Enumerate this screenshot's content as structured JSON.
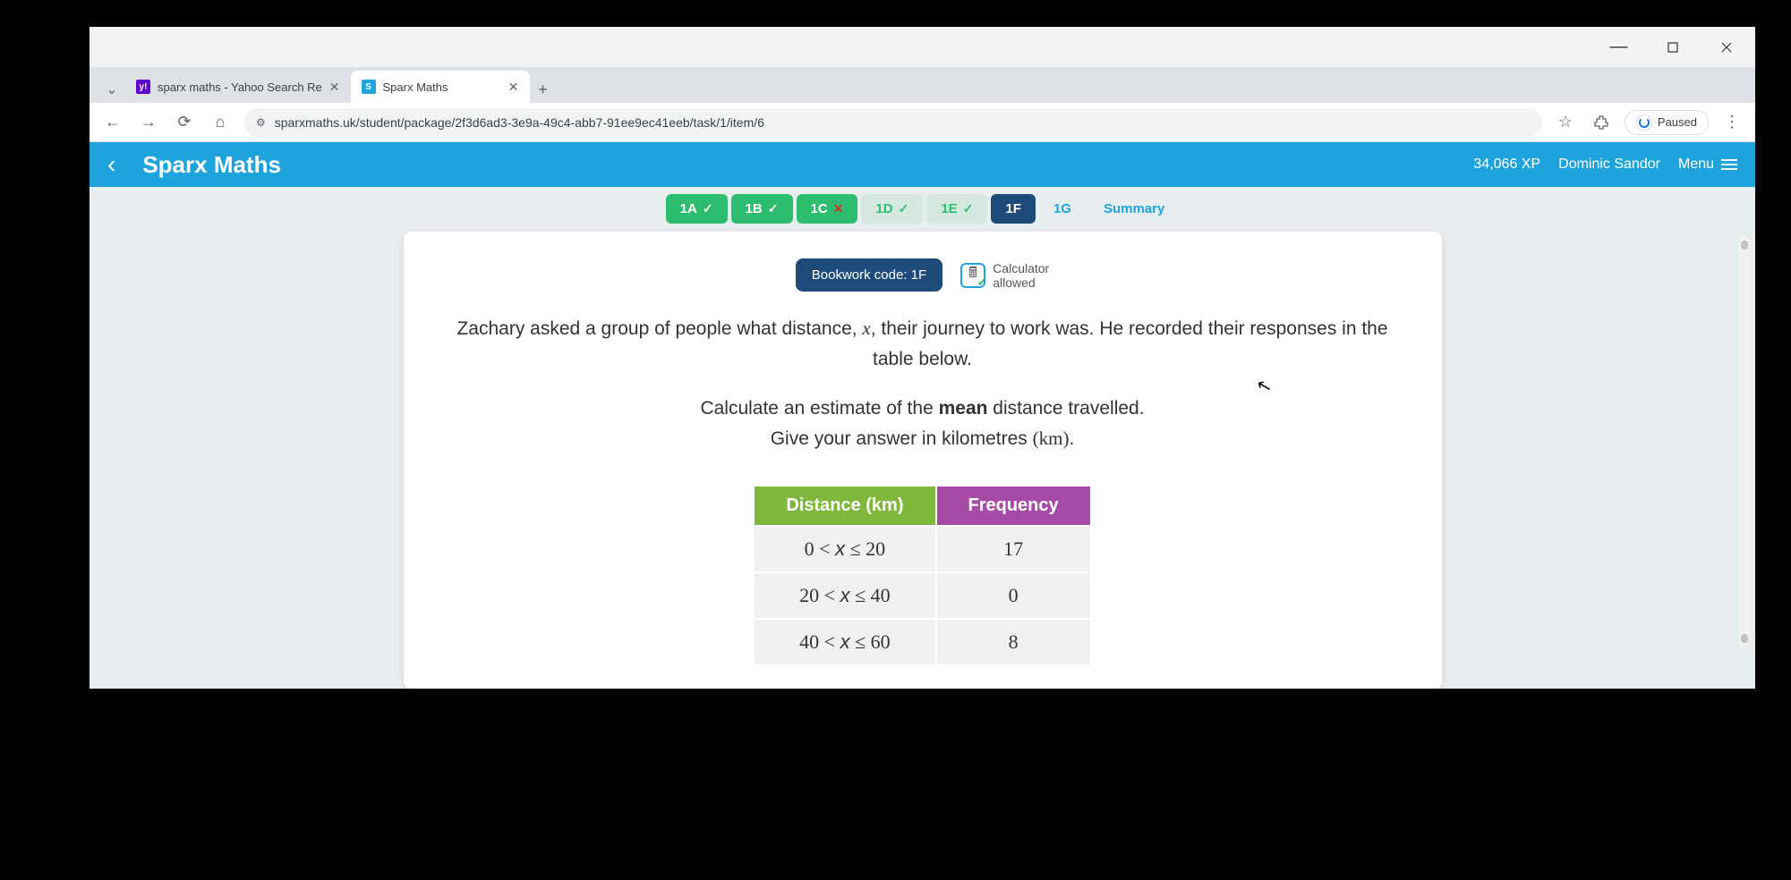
{
  "window": {
    "tabs": [
      {
        "title": "sparx maths - Yahoo Search Re",
        "favicon": "y!"
      },
      {
        "title": "Sparx Maths",
        "favicon": "S"
      }
    ],
    "url": "sparxmaths.uk/student/package/2f3d6ad3-3e9a-49c4-abb7-91ee9ec41eeb/task/1/item/6",
    "paused_label": "Paused"
  },
  "header": {
    "brand": "Sparx Maths",
    "xp": "34,066 XP",
    "user": "Dominic Sandor",
    "menu": "Menu"
  },
  "task_tabs": [
    {
      "label": "1A",
      "status": "✓",
      "state": "done"
    },
    {
      "label": "1B",
      "status": "✓",
      "state": "done"
    },
    {
      "label": "1C",
      "status": "✕",
      "state": "wrong"
    },
    {
      "label": "1D",
      "status": "✓",
      "state": "pending-light"
    },
    {
      "label": "1E",
      "status": "✓",
      "state": "pending-light"
    },
    {
      "label": "1F",
      "status": "",
      "state": "current"
    },
    {
      "label": "1G",
      "status": "",
      "state": "pending"
    },
    {
      "label": "Summary",
      "status": "",
      "state": "summary"
    }
  ],
  "bookwork": {
    "label": "Bookwork code: 1F"
  },
  "calculator": {
    "line1": "Calculator",
    "line2": "allowed"
  },
  "question": {
    "p1_a": "Zachary asked a group of people what distance, ",
    "p1_var": "x",
    "p1_b": ", their journey to work was. He recorded their responses in the table below.",
    "p2_a": "Calculate an estimate of the ",
    "p2_bold": "mean",
    "p2_b": " distance travelled.",
    "p3_a": "Give your answer in kilometres ",
    "p3_unit": "(km)",
    "p3_b": "."
  },
  "table": {
    "headers": {
      "distance": "Distance (km)",
      "frequency": "Frequency"
    },
    "rows": [
      {
        "range_a": "0 < ",
        "range_v": "x",
        "range_b": " ≤ 20",
        "freq": "17"
      },
      {
        "range_a": "20 < ",
        "range_v": "x",
        "range_b": " ≤ 40",
        "freq": "0"
      },
      {
        "range_a": "40 < ",
        "range_v": "x",
        "range_b": " ≤ 60",
        "freq": "8"
      }
    ],
    "colors": {
      "distance_bg": "#7fb83d",
      "frequency_bg": "#a64ca6",
      "cell_bg": "#f0f0ee"
    }
  }
}
